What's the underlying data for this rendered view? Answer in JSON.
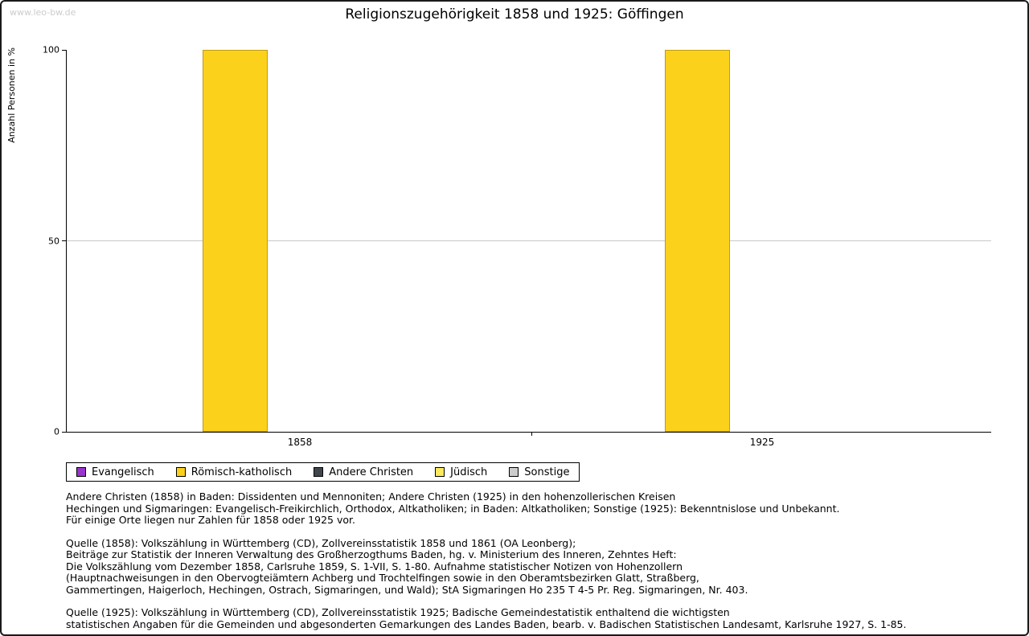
{
  "watermark": "www.leo-bw.de",
  "chart_data": {
    "type": "bar",
    "title": "Religionszugehörigkeit 1858 und 1925: Göffingen",
    "ylabel": "Anzahl Personen in %",
    "xlabel": "",
    "categories": [
      "1858",
      "1925"
    ],
    "series": [
      {
        "name": "Evangelisch",
        "color": "#9933CC",
        "values": [
          0,
          0
        ]
      },
      {
        "name": "Römisch-katholisch",
        "color": "#FCD11C",
        "values": [
          100,
          100
        ]
      },
      {
        "name": "Andere Christen",
        "color": "#41464C",
        "values": [
          0,
          0
        ]
      },
      {
        "name": "Jüdisch",
        "color": "#FFE95E",
        "values": [
          0,
          0
        ]
      },
      {
        "name": "Sonstige",
        "color": "#CCCCCC",
        "values": [
          0,
          0
        ]
      }
    ],
    "ylim": [
      0,
      100
    ],
    "yticks": [
      0,
      50,
      100
    ],
    "grid": "horizontal gridline at 50 only",
    "legend_position": "bottom-left"
  },
  "colors": {
    "axis": "#000000",
    "gridline": "#C9C9C9",
    "watermark_text": "#CCCCCC",
    "background": "#FFFFFF"
  },
  "notes": [
    [
      "Andere Christen (1858) in Baden: Dissidenten und Mennoniten; Andere Christen (1925) in den hohenzollerischen Kreisen",
      "Hechingen und Sigmaringen: Evangelisch-Freikirchlich, Orthodox, Altkatholiken; in Baden: Altkatholiken; Sonstige (1925): Bekenntnislose und Unbekannt.",
      "Für einige Orte liegen nur Zahlen für 1858 oder 1925 vor."
    ],
    [
      "Quelle (1858): Volkszählung in Württemberg (CD), Zollvereinsstatistik 1858 und 1861 (OA Leonberg);",
      "Beiträge zur Statistik der Inneren Verwaltung des Großherzogthums Baden, hg. v. Ministerium des Inneren, Zehntes Heft:",
      "Die Volkszählung vom Dezember 1858, Carlsruhe 1859, S. 1-VII, S. 1-80. Aufnahme statistischer Notizen von Hohenzollern",
      "(Hauptnachweisungen in den Obervogteiämtern Achberg und Trochtelfingen sowie in den Oberamtsbezirken Glatt, Straßberg,",
      "Gammertingen, Haigerloch, Hechingen, Ostrach, Sigmaringen, und Wald); StA Sigmaringen Ho 235 T 4-5 Pr. Reg. Sigmaringen, Nr. 403."
    ],
    [
      "Quelle (1925): Volkszählung in Württemberg (CD), Zollvereinsstatistik 1925; Badische Gemeindestatistik enthaltend die wichtigsten",
      "statistischen Angaben für die Gemeinden und abgesonderten Gemarkungen des Landes Baden, bearb. v. Badischen Statistischen Landesamt, Karlsruhe 1927, S. 1-85."
    ]
  ]
}
